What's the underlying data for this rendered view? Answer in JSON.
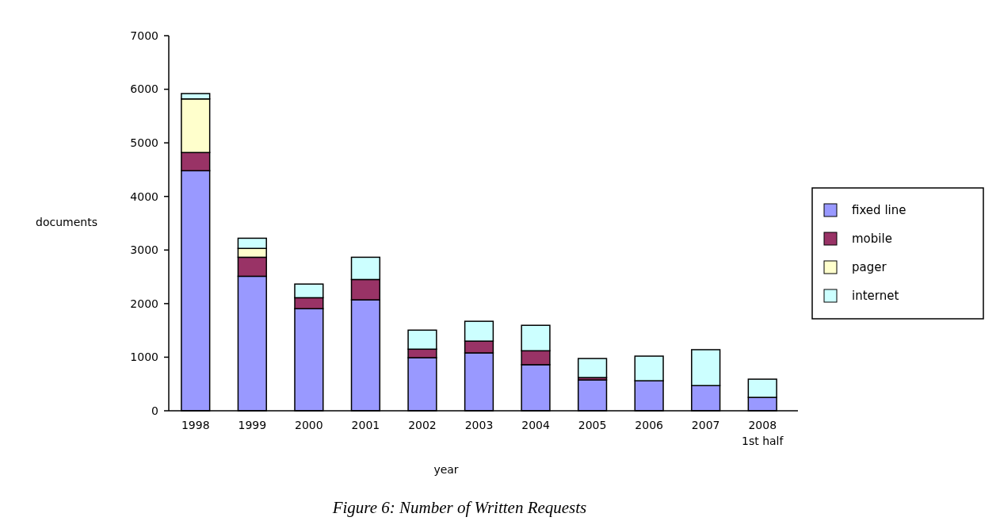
{
  "chart_data": {
    "type": "bar",
    "title": "Figure 6: Number of Written Requests",
    "xlabel": "year",
    "ylabel": "documents",
    "categories": [
      "1998",
      "1999",
      "2000",
      "2001",
      "2002",
      "2003",
      "2004",
      "2005",
      "2006",
      "2007",
      "2008\n1st half"
    ],
    "stacked": true,
    "ylim": [
      0,
      7000
    ],
    "yticks": [
      0,
      1000,
      2000,
      3000,
      4000,
      5000,
      6000,
      7000
    ],
    "grid": false,
    "legend": "right",
    "series": [
      {
        "name": "fixed line",
        "color": "#9999ff",
        "values": [
          4480,
          2510,
          1905,
          2070,
          990,
          1080,
          860,
          575,
          560,
          470,
          250
        ]
      },
      {
        "name": "mobile",
        "color": "#993366",
        "values": [
          340,
          355,
          205,
          380,
          160,
          220,
          260,
          45,
          0,
          0,
          0
        ]
      },
      {
        "name": "pager",
        "color": "#ffffcc",
        "values": [
          1000,
          165,
          0,
          0,
          0,
          0,
          0,
          0,
          0,
          0,
          0
        ]
      },
      {
        "name": "internet",
        "color": "#ccffff",
        "values": [
          100,
          190,
          255,
          415,
          355,
          370,
          475,
          355,
          460,
          670,
          340
        ]
      }
    ]
  }
}
